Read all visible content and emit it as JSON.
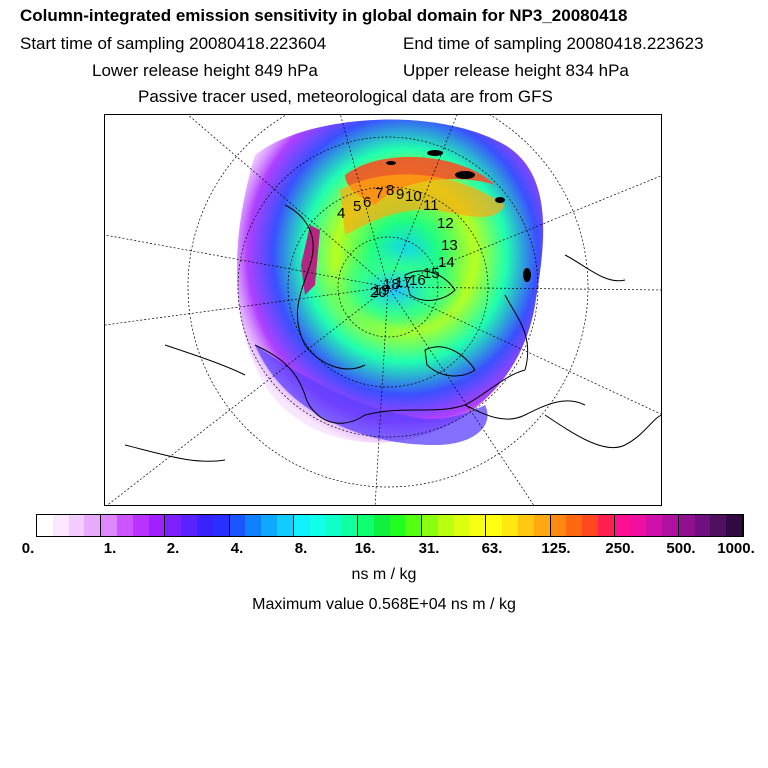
{
  "header": {
    "title": "Column-integrated emission sensitivity in global domain for NP3_20080418",
    "start": "Start time of sampling 20080418.223604",
    "end": "End time of sampling 20080418.223623",
    "lower": "Lower release height  849 hPa",
    "upper": "Upper release height  834 hPa",
    "note": "Passive tracer used, meteorological data are from GFS"
  },
  "map": {
    "trajectory_labels": [
      "4",
      "5",
      "6",
      "7",
      "8",
      "9",
      "10",
      "11",
      "12",
      "13",
      "14",
      "15",
      "16",
      "17",
      "18",
      "19",
      "20"
    ]
  },
  "colorbar": {
    "ticks": [
      "0.",
      "1.",
      "2.",
      "4.",
      "8.",
      "16.",
      "31.",
      "63.",
      "125.",
      "250.",
      "500.",
      "1000."
    ],
    "colors": [
      "#ffffff",
      "#fbe8ff",
      "#f2ccff",
      "#e8aaff",
      "#dd88ff",
      "#cc55ff",
      "#b833ff",
      "#a020ff",
      "#7d22ff",
      "#5a22ff",
      "#3a22ff",
      "#2a30ff",
      "#1a55ff",
      "#0f80ff",
      "#10a8ff",
      "#10ccff",
      "#10f0ff",
      "#10ffe8",
      "#10ffc8",
      "#10ffa0",
      "#10ff70",
      "#10f040",
      "#20ff20",
      "#55ff10",
      "#88ff10",
      "#b8ff10",
      "#dcff10",
      "#f8ff10",
      "#ffff10",
      "#ffe810",
      "#ffc810",
      "#ffa810",
      "#ff8810",
      "#ff6810",
      "#ff4820",
      "#ff2050",
      "#ff1090",
      "#f010a0",
      "#d010a8",
      "#b010a0",
      "#901090",
      "#701080",
      "#501060",
      "#300a40"
    ]
  },
  "units": "ns m / kg",
  "max_value": "Maximum value  0.568E+04 ns m / kg"
}
